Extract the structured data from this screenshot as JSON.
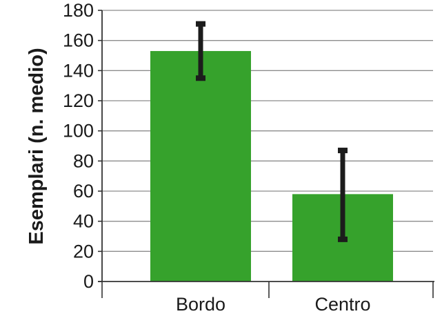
{
  "chart_data": {
    "type": "bar",
    "title": "",
    "xlabel": "",
    "ylabel": "Esemplari (n. medio)",
    "categories": [
      "Bordo",
      "Centro"
    ],
    "values": [
      153,
      58
    ],
    "error_bars": [
      {
        "low": 135,
        "high": 171
      },
      {
        "low": 28,
        "high": 87
      }
    ],
    "ylim": [
      0,
      180
    ],
    "yticks": [
      0,
      20,
      40,
      60,
      80,
      100,
      120,
      140,
      160,
      180
    ],
    "grid": "horizontal",
    "legend": "none"
  },
  "colors": {
    "bar": "#36a22c",
    "error_bar": "#1c1c1c",
    "grid": "#8c8c8c",
    "axis": "#333333",
    "text": "#1a1a1a"
  }
}
